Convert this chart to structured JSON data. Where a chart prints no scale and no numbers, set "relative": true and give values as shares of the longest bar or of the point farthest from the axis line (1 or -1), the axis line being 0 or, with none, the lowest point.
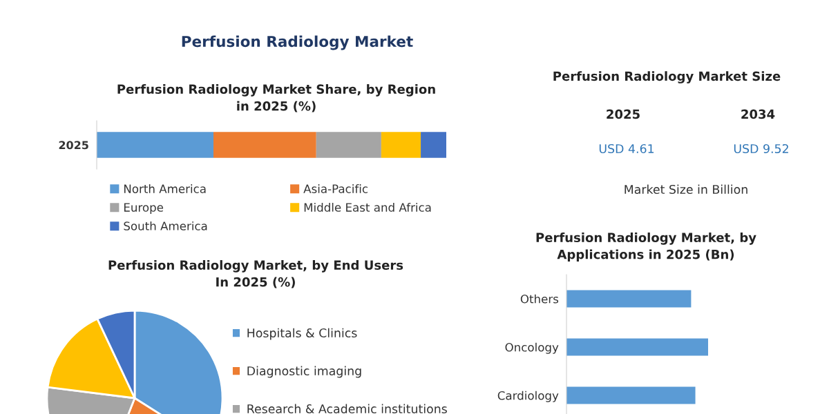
{
  "chart_data": [
    {
      "type": "other",
      "title": "Perfusion Radiology Market"
    },
    {
      "type": "bar",
      "title": "Perfusion Radiology Market Share, by Region\nin 2025 (%)",
      "categories": [
        "2025"
      ],
      "orientation": "horizontal",
      "stacked": true,
      "relative": true,
      "legend": "bottom",
      "series": [
        {
          "name": "North America",
          "color": "#5b9bd5",
          "values": [
            0.334
          ]
        },
        {
          "name": "Asia-Pacific",
          "color": "#ed7d31",
          "values": [
            0.294
          ]
        },
        {
          "name": "Europe",
          "color": "#a5a5a5",
          "values": [
            0.186
          ]
        },
        {
          "name": "Middle East and Africa",
          "color": "#ffc000",
          "values": [
            0.113
          ]
        },
        {
          "name": "South America",
          "color": "#4472c4",
          "values": [
            0.073
          ]
        }
      ]
    },
    {
      "type": "other",
      "title": "Perfusion Radiology Market Size",
      "categories": [
        "2025",
        "2034"
      ],
      "value_labels": [
        "USD 4.61",
        "USD 9.52"
      ],
      "annotations": [
        "Market Size in Billion"
      ]
    },
    {
      "type": "pie",
      "title": "Perfusion Radiology Market, by End Users\nIn 2025 (%)",
      "legend": "right",
      "categories": [
        "Hospitals & Clinics",
        "Diagnostic imaging",
        "Research & Academic institutions",
        null,
        null
      ],
      "values": [
        34,
        22,
        21,
        16,
        7
      ],
      "colors": [
        "#5b9bd5",
        "#ed7d31",
        "#a5a5a5",
        "#ffc000",
        "#4472c4"
      ]
    },
    {
      "type": "bar",
      "title": "Perfusion Radiology Market, by\nApplications in 2025 (Bn)",
      "orientation": "horizontal",
      "relative": true,
      "color": "#5b9bd5",
      "categories": [
        "Others",
        "Oncology",
        "Cardiology"
      ],
      "values": [
        0.88,
        1,
        0.91
      ]
    }
  ]
}
